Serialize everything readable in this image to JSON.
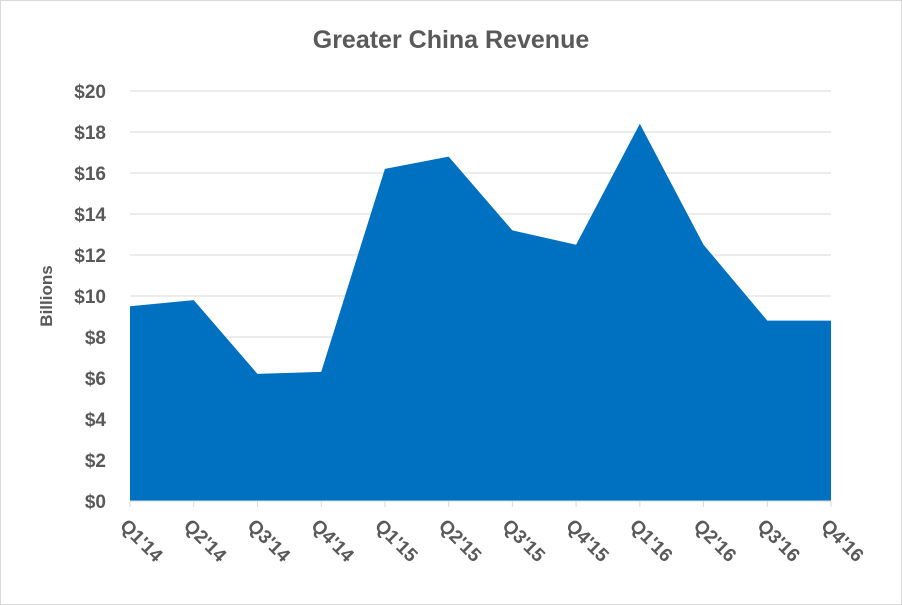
{
  "chart_data": {
    "type": "area",
    "title": "Greater China Revenue",
    "xlabel": "",
    "ylabel": "Billions",
    "categories": [
      "Q1'14",
      "Q2'14",
      "Q3'14",
      "Q4'14",
      "Q1'15",
      "Q2'15",
      "Q3'15",
      "Q4'15",
      "Q1'16",
      "Q2'16",
      "Q3'16",
      "Q4'16"
    ],
    "values": [
      9.5,
      9.8,
      6.2,
      6.3,
      16.2,
      16.8,
      13.2,
      12.5,
      18.4,
      12.5,
      8.8,
      8.8
    ],
    "ylim": [
      0,
      20
    ],
    "yticks": [
      0,
      2,
      4,
      6,
      8,
      10,
      12,
      14,
      16,
      18,
      20
    ],
    "ytick_prefix": "$",
    "grid": true,
    "legend": "none",
    "color": "#0070c0"
  }
}
